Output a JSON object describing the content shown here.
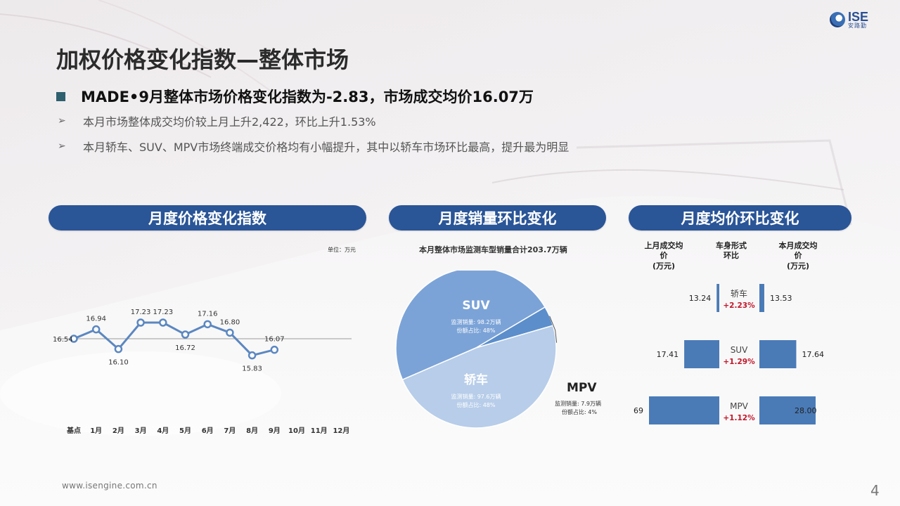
{
  "logo": {
    "main": "ISE",
    "sub": "安路勤"
  },
  "title": "加权价格变化指数—整体市场",
  "headline": "MADE•9月整体市场价格变化指数为-2.83，市场成交均价16.07万",
  "bullets": [
    "本月市场整体成交均价较上月上升2,422，环比上升1.53%",
    "本月轿车、SUV、MPV市场终端成交价格均有小幅提升，其中以轿车市场环比最高，提升最为明显"
  ],
  "sections": {
    "index": "月度价格变化指数",
    "sales": "月度销量环比变化",
    "price": "月度均价环比变化"
  },
  "unit_note": "单位：万元",
  "total_note": "本月整体市场监测车型销量合计203.7万辆",
  "price_headers": {
    "last": "上月成交均价\n(万元)",
    "type": "车身形式\n环比",
    "current": "本月成交均价\n(万元)"
  },
  "chart_data": [
    {
      "type": "line",
      "categories": [
        "基点",
        "1月",
        "2月",
        "3月",
        "4月",
        "5月",
        "6月",
        "7月",
        "8月",
        "9月",
        "10月",
        "11月",
        "12月"
      ],
      "values": [
        16.54,
        16.94,
        16.1,
        17.23,
        17.23,
        16.72,
        17.16,
        16.8,
        15.83,
        16.07,
        null,
        null,
        null
      ],
      "baseline": 16.54,
      "color": "#5b87c0"
    },
    {
      "type": "pie",
      "slices": [
        {
          "name": "SUV",
          "value": 48,
          "volume_label": "监测销量: 98.2万辆",
          "share_label": "份额占比: 48%",
          "color": "#7ba3d7"
        },
        {
          "name": "MPV",
          "value": 4,
          "volume_label": "监测销量: 7.9万辆",
          "share_label": "份额占比: 4%",
          "color": "#5b8ecb"
        },
        {
          "name": "轿车",
          "value": 48,
          "volume_label": "监测销量: 97.6万辆",
          "share_label": "份额占比: 48%",
          "color": "#b7cde9"
        }
      ]
    },
    {
      "type": "bar",
      "rows": [
        {
          "name": "轿车",
          "last": 13.24,
          "current": 13.53,
          "change": "+2.23%"
        },
        {
          "name": "SUV",
          "last": 17.41,
          "current": 17.64,
          "change": "+1.29%"
        },
        {
          "name": "MPV",
          "last": 27.69,
          "current": 28.0,
          "change": "+1.12%"
        }
      ],
      "bar_color": "#4a7bb7",
      "change_color": "#c0182a"
    }
  ],
  "footer": {
    "url": "www.isengine.com.cn",
    "page": "4"
  }
}
